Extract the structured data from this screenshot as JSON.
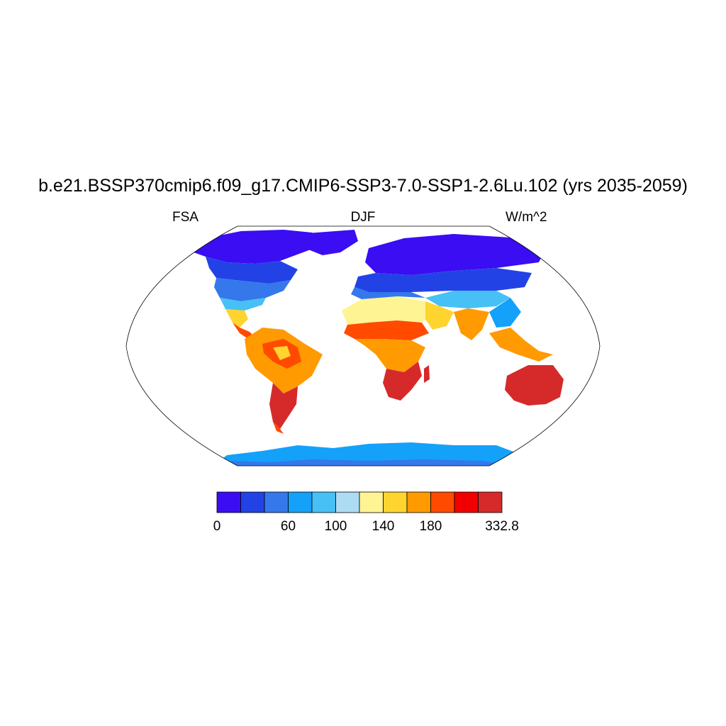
{
  "title": "b.e21.BSSP370cmip6.f09_g17.CMIP6-SSP3-7.0-SSP1-2.6Lu.102 (yrs 2035-2059)",
  "variable": "FSA",
  "season": "DJF",
  "units": "W/m^2",
  "colorbar": {
    "colors": [
      "#3a0df2",
      "#2342e6",
      "#3478eb",
      "#14a1fa",
      "#47c0f5",
      "#addcf2",
      "#fff494",
      "#ffd42e",
      "#ff9a00",
      "#ff4a00",
      "#f00000",
      "#d62a2a"
    ],
    "labels": [
      {
        "text": "0",
        "index": 0
      },
      {
        "text": "60",
        "index": 3
      },
      {
        "text": "100",
        "index": 5
      },
      {
        "text": "140",
        "index": 7
      },
      {
        "text": "180",
        "index": 9
      },
      {
        "text": "332.8",
        "index": 12
      }
    ]
  }
}
